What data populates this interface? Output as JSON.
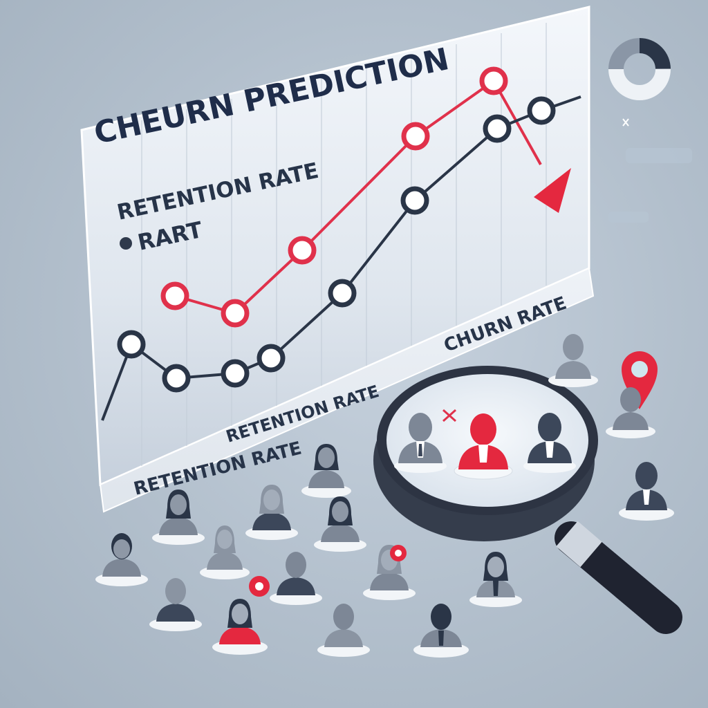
{
  "title": "CHEURN PREDICTION",
  "labels": {
    "retention_top": "RETENTION RATE",
    "legend": "RART",
    "churn": "CHURN RATE",
    "retention_floor": "RETENTION  RATE",
    "base": "RETENTION  RATE"
  },
  "colors": {
    "churn_line": "#e0314b",
    "retention_line": "#2a3547",
    "panel": "#e8eef5",
    "accent_red": "#e4283f",
    "figure_gray": "#7d8796",
    "figure_dark": "#3c475a"
  },
  "icons": [
    "donut-chart-icon",
    "sparkle-icon",
    "location-pin-icon",
    "magnifying-glass-icon",
    "person-icon",
    "close-x-icon"
  ]
}
